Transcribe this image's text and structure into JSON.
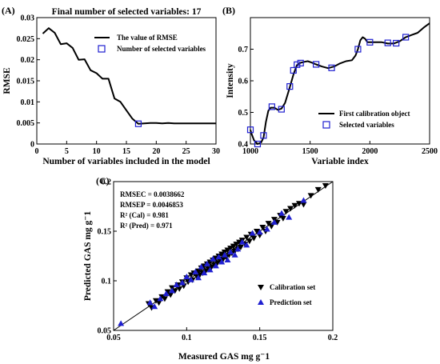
{
  "chart_data": [
    {
      "type": "line",
      "panel_label": "(A)",
      "title": "Final number of selected variables: 17",
      "xlabel": "Number of variables included in the model",
      "ylabel": "RMSE",
      "xlim": [
        0,
        30
      ],
      "ylim": [
        0,
        0.03
      ],
      "xticks": [
        "0",
        "5",
        "10",
        "15",
        "20",
        "25",
        "30"
      ],
      "yticks": [
        "0",
        "0.005",
        "0.01",
        "0.015",
        "0.02",
        "0.025",
        "0.03"
      ],
      "legend_position": "top-right",
      "series": [
        {
          "name": "The value of RMSE",
          "color": "#000000",
          "x": [
            1,
            2,
            3,
            4,
            5,
            6,
            7,
            8,
            9,
            10,
            11,
            12,
            13,
            14,
            15,
            16,
            17,
            18,
            19,
            20,
            21,
            22,
            23,
            24,
            25,
            26,
            27,
            28,
            29,
            30
          ],
          "y": [
            0.0262,
            0.0275,
            0.0264,
            0.0237,
            0.0239,
            0.0228,
            0.02,
            0.0201,
            0.0175,
            0.0168,
            0.0155,
            0.0155,
            0.0108,
            0.01,
            0.008,
            0.006,
            0.0048,
            0.0049,
            0.005,
            0.005,
            0.0049,
            0.005,
            0.0049,
            0.0049,
            0.0049,
            0.0049,
            0.0049,
            0.0049,
            0.0049,
            0.0049
          ]
        },
        {
          "name": "Number of selected variables",
          "color": "#1f1fd0",
          "marker": "square",
          "x": [
            17
          ],
          "y": [
            0.0048
          ]
        }
      ]
    },
    {
      "type": "line",
      "panel_label": "(B)",
      "xlabel": "Variable index",
      "ylabel": "Intensity",
      "xlim": [
        1000,
        2500
      ],
      "ylim": [
        0.4,
        0.8
      ],
      "xticks": [
        "1000",
        "1500",
        "2000",
        "2500"
      ],
      "yticks": [
        "0.4",
        "0.5",
        "0.6",
        "0.7"
      ],
      "legend_position": "bottom-right",
      "series": [
        {
          "name": "First calibration object",
          "color": "#000000",
          "x": [
            1000,
            1010,
            1030,
            1060,
            1090,
            1110,
            1130,
            1150,
            1170,
            1200,
            1230,
            1260,
            1290,
            1330,
            1360,
            1390,
            1420,
            1450,
            1480,
            1510,
            1550,
            1600,
            1650,
            1700,
            1750,
            1800,
            1850,
            1880,
            1900,
            1920,
            1940,
            1960,
            1980,
            2000,
            2050,
            2100,
            2150,
            2200,
            2250,
            2300,
            2350,
            2400,
            2450,
            2500
          ],
          "y": [
            0.445,
            0.432,
            0.412,
            0.4,
            0.405,
            0.42,
            0.47,
            0.505,
            0.515,
            0.515,
            0.508,
            0.512,
            0.53,
            0.58,
            0.62,
            0.65,
            0.657,
            0.66,
            0.662,
            0.658,
            0.652,
            0.645,
            0.64,
            0.645,
            0.655,
            0.662,
            0.665,
            0.68,
            0.7,
            0.728,
            0.738,
            0.733,
            0.722,
            0.722,
            0.722,
            0.722,
            0.718,
            0.718,
            0.725,
            0.738,
            0.745,
            0.752,
            0.768,
            0.782
          ]
        },
        {
          "name": "Selected variables",
          "color": "#1f1fd0",
          "marker": "square",
          "x": [
            1000,
            1060,
            1110,
            1180,
            1260,
            1330,
            1360,
            1390,
            1420,
            1550,
            1680,
            1900,
            2000,
            2150,
            2220,
            2300
          ],
          "y": [
            0.445,
            0.4,
            0.427,
            0.518,
            0.51,
            0.582,
            0.633,
            0.651,
            0.656,
            0.652,
            0.641,
            0.7,
            0.722,
            0.72,
            0.719,
            0.738
          ]
        }
      ]
    },
    {
      "type": "scatter",
      "panel_label": "(C)",
      "xlabel": "Measured GAS mg g⁻1",
      "ylabel": "Predicted GAS mg g⁻1",
      "xlim": [
        0.05,
        0.2
      ],
      "ylim": [
        0.05,
        0.2
      ],
      "xticks": [
        "0.05",
        "0.1",
        "0.15",
        "0.2"
      ],
      "yticks": [
        "0.05",
        "0.1",
        "0.15",
        "0.2"
      ],
      "legend_position": "right",
      "annotations": [
        "RMSEC = 0.0038662",
        "RMSEP = 0.0046853",
        "R² (Cal) = 0.981",
        "R² (Pred) = 0.971"
      ],
      "reference_line": {
        "x": [
          0.05,
          0.2
        ],
        "y": [
          0.05,
          0.2
        ]
      },
      "series": [
        {
          "name": "Calibration set",
          "color": "#000000",
          "marker": "triangle-down",
          "x": [
            0.074,
            0.076,
            0.079,
            0.081,
            0.083,
            0.085,
            0.087,
            0.089,
            0.09,
            0.092,
            0.094,
            0.095,
            0.097,
            0.098,
            0.1,
            0.101,
            0.103,
            0.104,
            0.105,
            0.107,
            0.108,
            0.109,
            0.11,
            0.111,
            0.112,
            0.113,
            0.114,
            0.115,
            0.116,
            0.117,
            0.118,
            0.119,
            0.12,
            0.121,
            0.122,
            0.123,
            0.124,
            0.125,
            0.126,
            0.127,
            0.128,
            0.129,
            0.13,
            0.131,
            0.132,
            0.133,
            0.134,
            0.135,
            0.136,
            0.137,
            0.138,
            0.14,
            0.141,
            0.143,
            0.144,
            0.146,
            0.148,
            0.15,
            0.152,
            0.154,
            0.156,
            0.158,
            0.16,
            0.162,
            0.164,
            0.166,
            0.168,
            0.171,
            0.174,
            0.177,
            0.18,
            0.185,
            0.19,
            0.195
          ],
          "y": [
            0.077,
            0.073,
            0.08,
            0.078,
            0.084,
            0.082,
            0.089,
            0.086,
            0.093,
            0.09,
            0.096,
            0.092,
            0.099,
            0.095,
            0.103,
            0.099,
            0.106,
            0.101,
            0.108,
            0.104,
            0.11,
            0.106,
            0.113,
            0.108,
            0.115,
            0.11,
            0.117,
            0.112,
            0.119,
            0.114,
            0.121,
            0.116,
            0.123,
            0.118,
            0.125,
            0.12,
            0.127,
            0.122,
            0.129,
            0.124,
            0.131,
            0.126,
            0.133,
            0.128,
            0.135,
            0.13,
            0.137,
            0.132,
            0.139,
            0.134,
            0.141,
            0.137,
            0.144,
            0.14,
            0.147,
            0.143,
            0.15,
            0.146,
            0.154,
            0.15,
            0.158,
            0.155,
            0.162,
            0.159,
            0.166,
            0.163,
            0.17,
            0.173,
            0.176,
            0.178,
            0.177,
            0.186,
            0.192,
            0.196
          ]
        },
        {
          "name": "Prediction set",
          "color": "#1f1fd0",
          "marker": "triangle-up",
          "x": [
            0.055,
            0.075,
            0.078,
            0.082,
            0.086,
            0.09,
            0.093,
            0.097,
            0.1,
            0.103,
            0.106,
            0.108,
            0.11,
            0.112,
            0.114,
            0.116,
            0.118,
            0.12,
            0.122,
            0.124,
            0.126,
            0.128,
            0.13,
            0.133,
            0.135,
            0.138,
            0.141,
            0.145,
            0.15,
            0.155,
            0.16,
            0.165,
            0.17,
            0.18
          ],
          "y": [
            0.057,
            0.078,
            0.074,
            0.082,
            0.087,
            0.09,
            0.096,
            0.098,
            0.104,
            0.101,
            0.109,
            0.103,
            0.114,
            0.108,
            0.117,
            0.111,
            0.122,
            0.115,
            0.124,
            0.119,
            0.126,
            0.121,
            0.129,
            0.126,
            0.132,
            0.139,
            0.136,
            0.148,
            0.149,
            0.152,
            0.159,
            0.168,
            0.164,
            0.181
          ]
        }
      ]
    }
  ]
}
